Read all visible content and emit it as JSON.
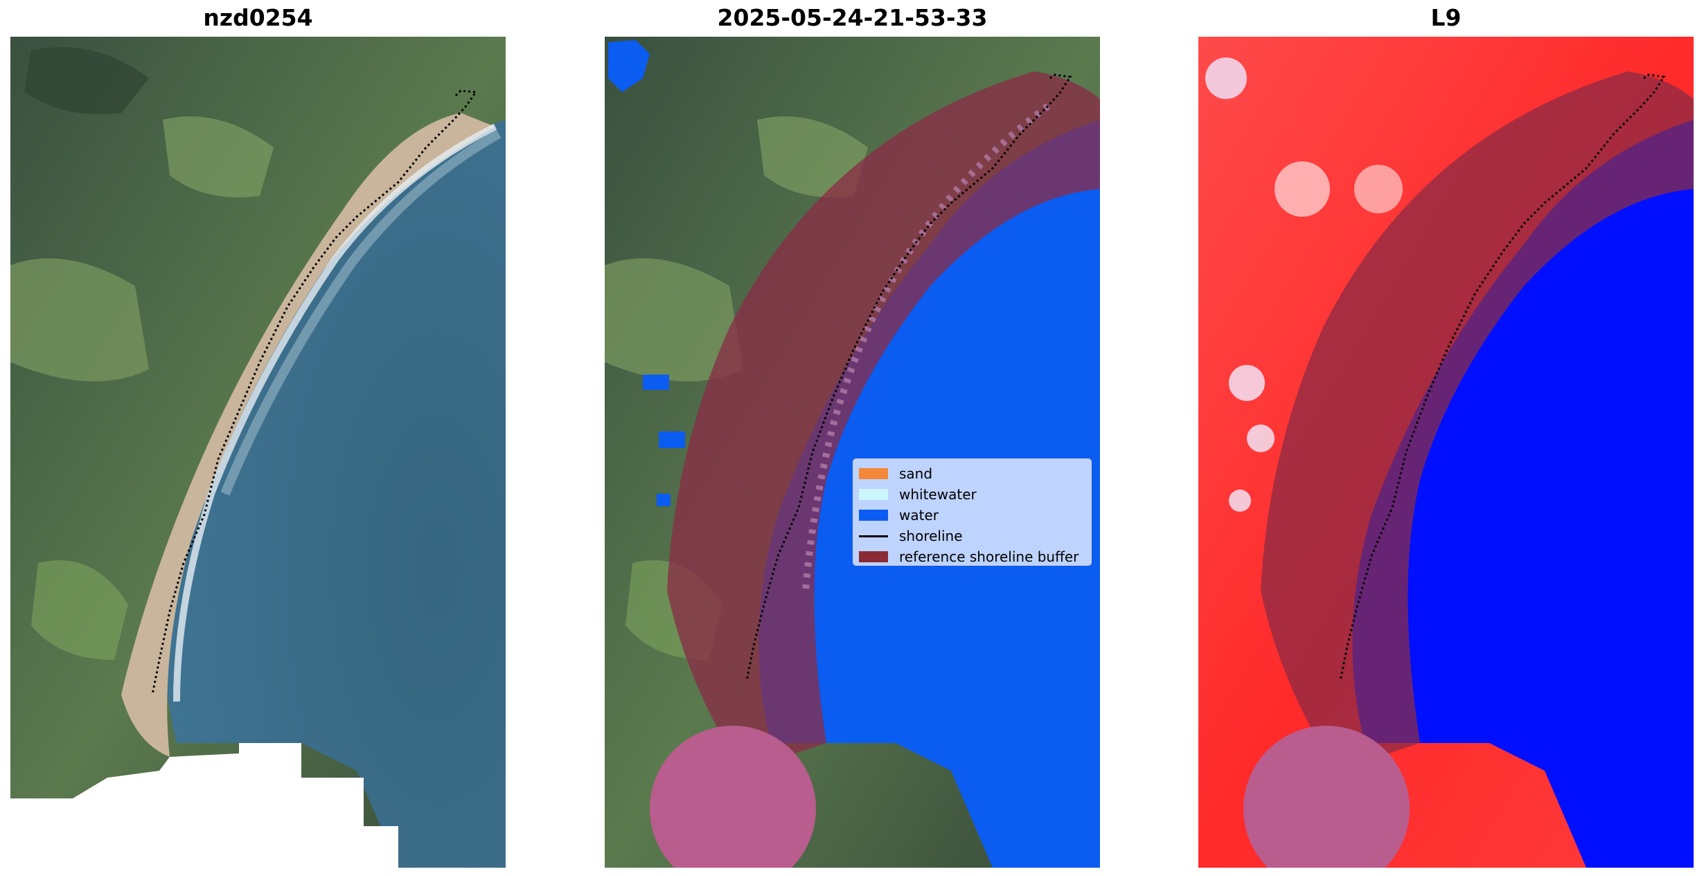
{
  "panels": [
    {
      "title": "nzd0254"
    },
    {
      "title": "2025-05-24-21-53-33"
    },
    {
      "title": "L9"
    }
  ],
  "legend": {
    "items": [
      {
        "label": "sand",
        "color": "#f4883a",
        "kind": "patch"
      },
      {
        "label": "whitewater",
        "color": "#cdf7ff",
        "kind": "patch"
      },
      {
        "label": "water",
        "color": "#0b5cf0",
        "kind": "patch"
      },
      {
        "label": "shoreline",
        "color": "#000000",
        "kind": "line"
      },
      {
        "label": "reference shoreline buffer",
        "color": "#8b2b35",
        "kind": "patch"
      }
    ]
  },
  "colors": {
    "land_dark": "#3b4f3a",
    "land_green": "#6a8a57",
    "sand_beach": "#c6b49a",
    "ocean": "#3d6e8f",
    "water_class": "#0b5cf0",
    "buffer_overlay": "#8b2b45",
    "index_red": "#ff2a2a",
    "index_blue": "#0010ff"
  }
}
